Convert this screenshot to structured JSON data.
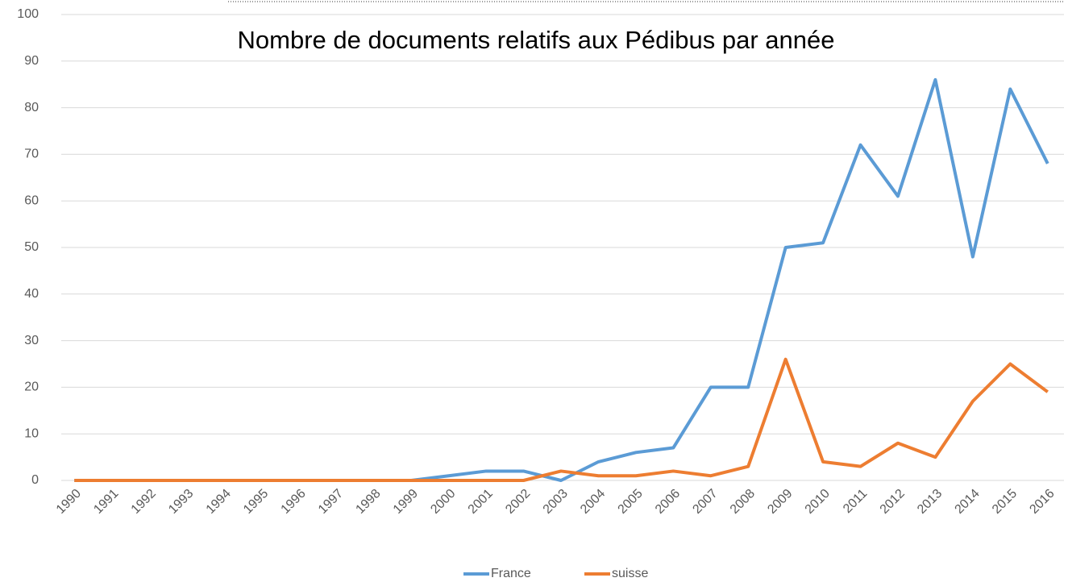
{
  "chart_data": {
    "type": "line",
    "title": "Nombre de documents relatifs aux Pédibus par année",
    "categories": [
      "1990",
      "1991",
      "1992",
      "1993",
      "1994",
      "1995",
      "1996",
      "1997",
      "1998",
      "1999",
      "2000",
      "2001",
      "2002",
      "2003",
      "2004",
      "2005",
      "2006",
      "2007",
      "2008",
      "2009",
      "2010",
      "2011",
      "2012",
      "2013",
      "2014",
      "2015",
      "2016"
    ],
    "series": [
      {
        "name": "France",
        "color": "#5b9bd5",
        "values": [
          0,
          0,
          0,
          0,
          0,
          0,
          0,
          0,
          0,
          0,
          1,
          2,
          2,
          0,
          4,
          6,
          7,
          20,
          20,
          50,
          51,
          72,
          61,
          86,
          48,
          84,
          68
        ]
      },
      {
        "name": "suisse",
        "color": "#ed7d31",
        "values": [
          0,
          0,
          0,
          0,
          0,
          0,
          0,
          0,
          0,
          0,
          0,
          0,
          0,
          2,
          1,
          1,
          2,
          1,
          3,
          26,
          4,
          3,
          8,
          5,
          17,
          25,
          19
        ]
      }
    ],
    "ylim": [
      0,
      100
    ],
    "yticks": [
      0,
      10,
      20,
      30,
      40,
      50,
      60,
      70,
      80,
      90,
      100
    ],
    "grid": true,
    "legend": "bottom"
  }
}
